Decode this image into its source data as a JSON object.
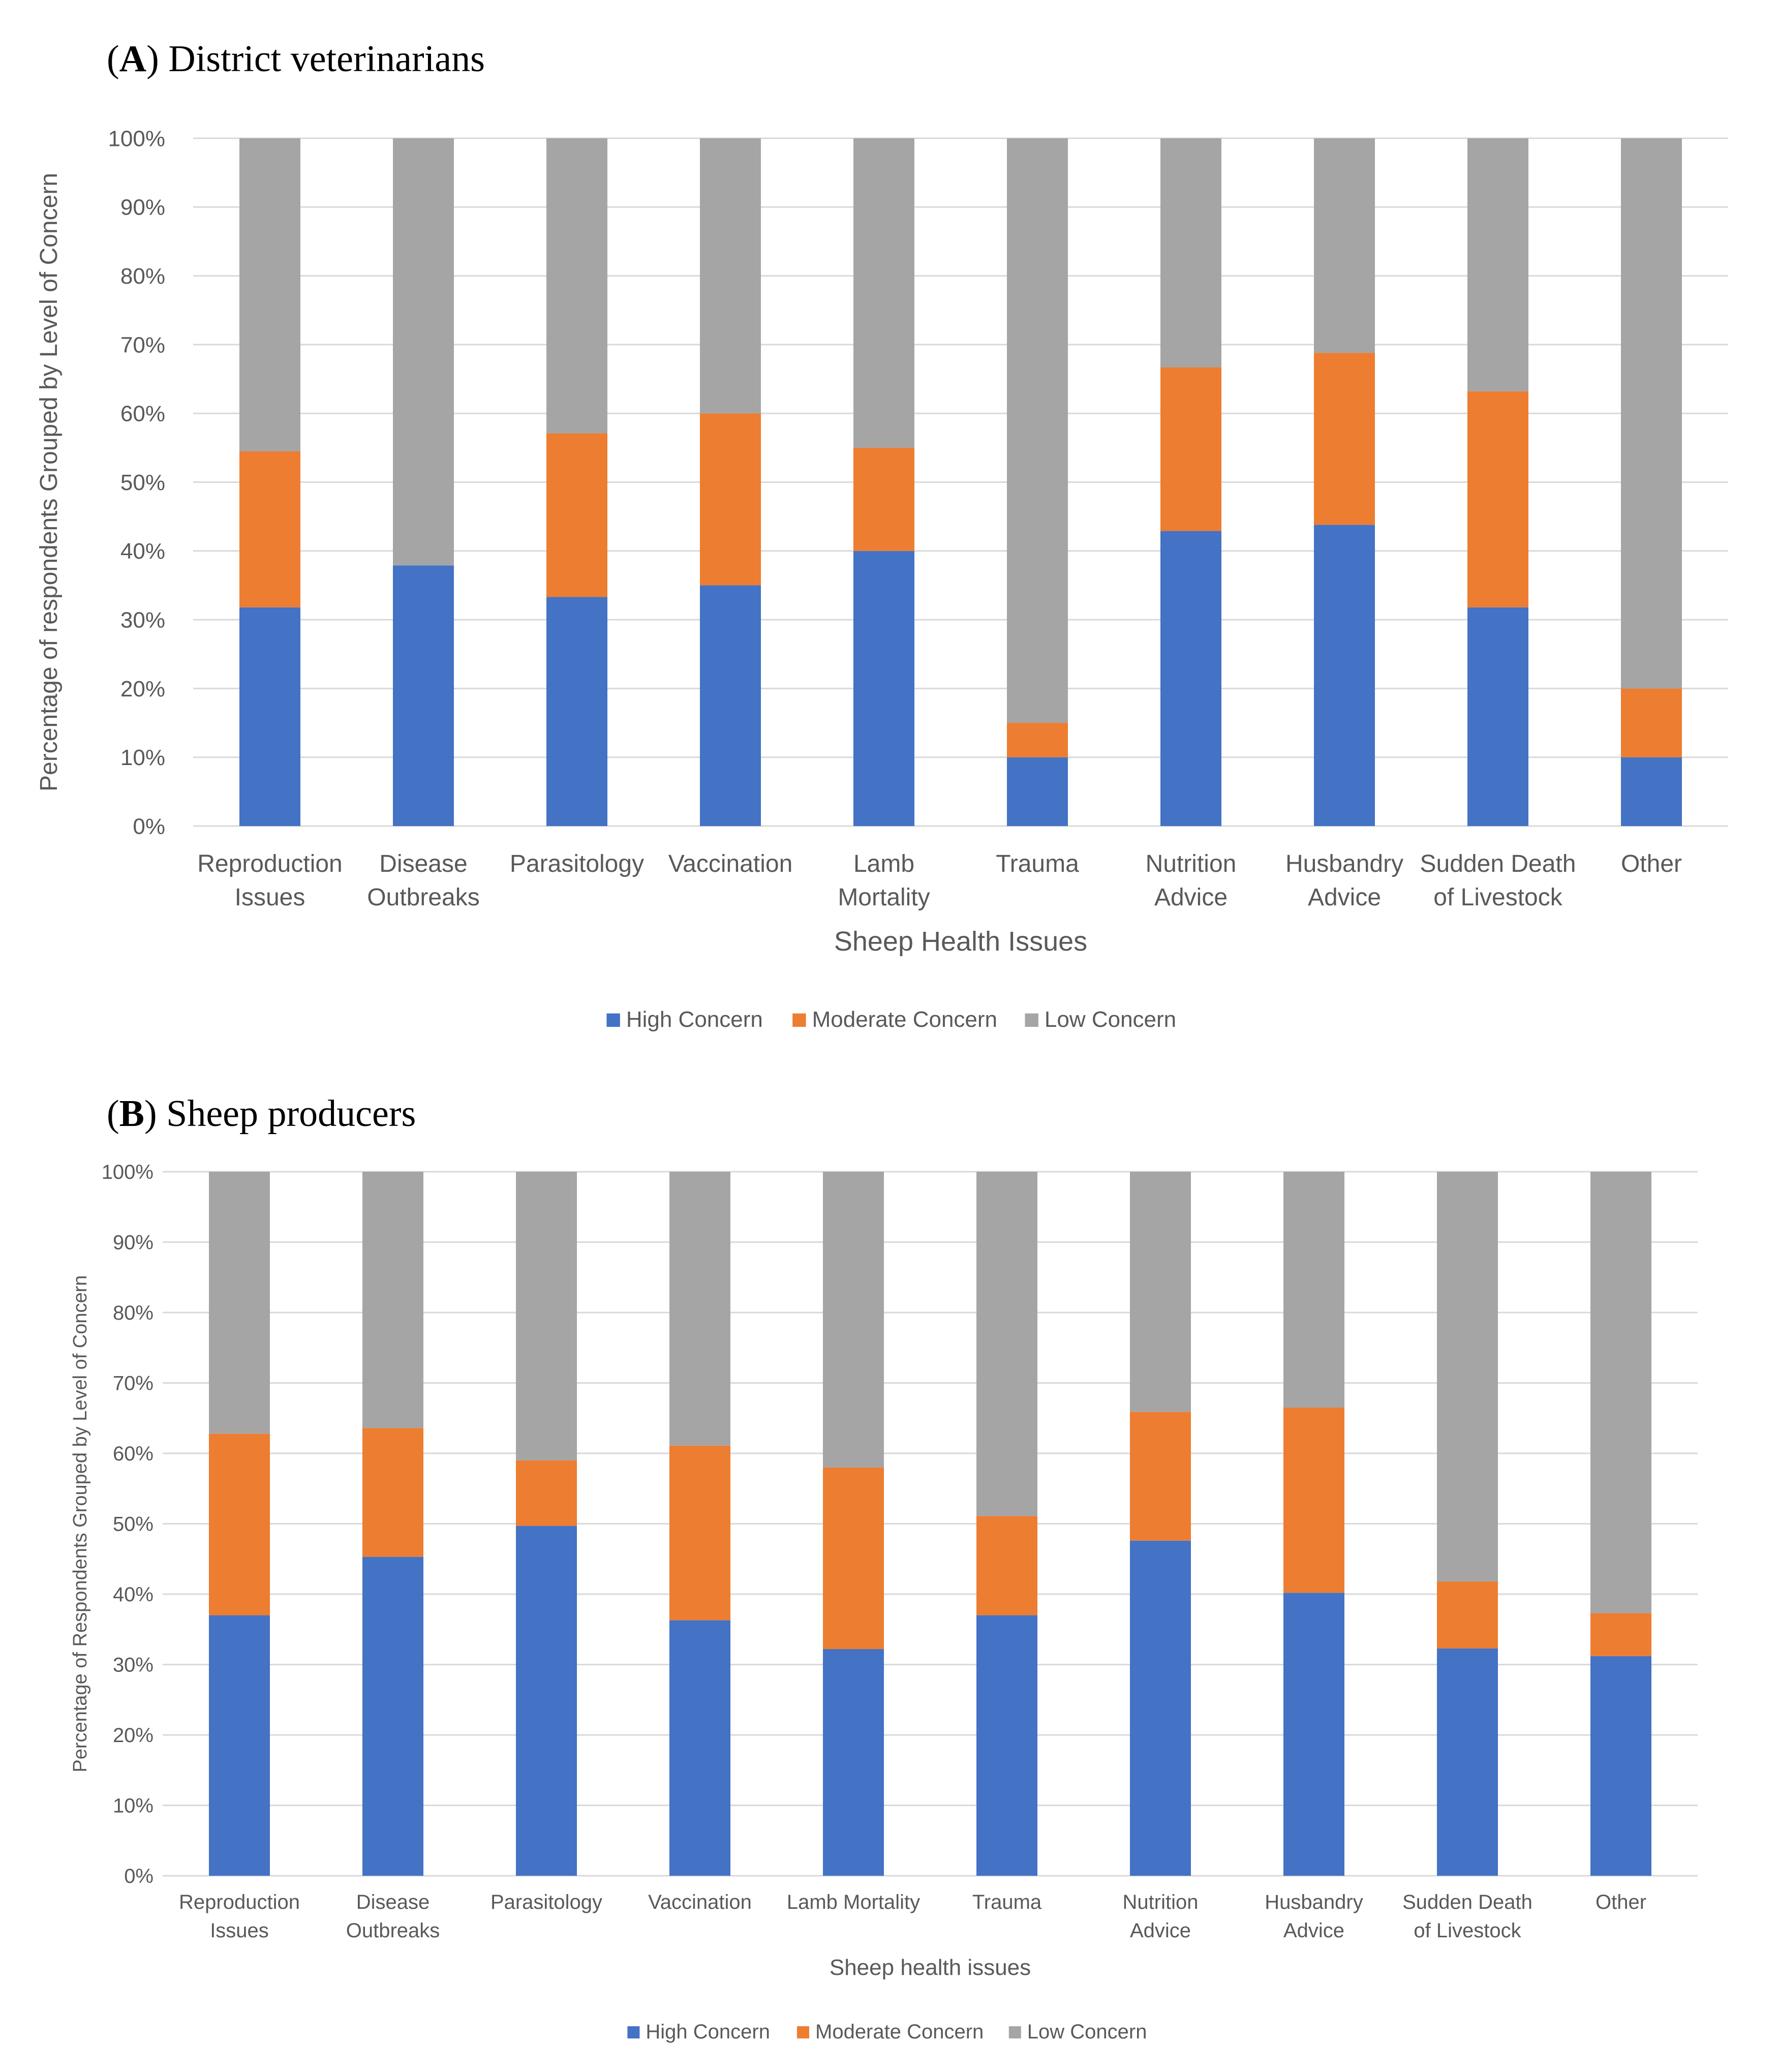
{
  "legend_labels": [
    "High Concern",
    "Moderate Concern",
    "Low Concern"
  ],
  "colors": {
    "high": "#4472C4",
    "moderate": "#ED7D31",
    "low": "#A5A5A5",
    "grid": "#D9D9D9",
    "tick_text": "#595959"
  },
  "chart_data": [
    {
      "type": "bar",
      "stacked": true,
      "panel_letter": "A",
      "panel_title": "District veterinarians",
      "xlabel": "Sheep Health Issues",
      "ylabel": "Percentage of respondents Grouped by Level of Concern",
      "ylim": [
        0,
        100
      ],
      "yticks": [
        "0%",
        "10%",
        "20%",
        "30%",
        "40%",
        "50%",
        "60%",
        "70%",
        "80%",
        "90%",
        "100%"
      ],
      "grid": true,
      "legend_position": "bottom",
      "categories": [
        [
          "Reproduction",
          "Issues"
        ],
        [
          "Disease",
          "Outbreaks"
        ],
        [
          "Parasitology"
        ],
        [
          "Vaccination"
        ],
        [
          "Lamb",
          "Mortality"
        ],
        [
          "Trauma"
        ],
        [
          "Nutrition",
          "Advice"
        ],
        [
          "Husbandry",
          "Advice"
        ],
        [
          "Sudden Death",
          "of Livestock"
        ],
        [
          "Other"
        ]
      ],
      "series": [
        {
          "name": "High Concern",
          "values": [
            31.8,
            37.9,
            33.3,
            35.0,
            40.0,
            10.0,
            42.9,
            43.8,
            31.8,
            10.0
          ]
        },
        {
          "name": "Moderate Concern",
          "values": [
            22.7,
            0.0,
            23.8,
            25.0,
            15.0,
            5.0,
            23.8,
            25.0,
            31.4,
            10.0
          ]
        },
        {
          "name": "Low Concern",
          "values": [
            45.5,
            62.1,
            42.9,
            40.0,
            45.0,
            85.0,
            33.3,
            31.2,
            36.8,
            80.0
          ]
        }
      ]
    },
    {
      "type": "bar",
      "stacked": true,
      "panel_letter": "B",
      "panel_title": "Sheep producers",
      "xlabel": "Sheep health issues",
      "ylabel": "Percentage of Respondents Grouped by Level of Concern",
      "ylim": [
        0,
        100
      ],
      "yticks": [
        "0%",
        "10%",
        "20%",
        "30%",
        "40%",
        "50%",
        "60%",
        "70%",
        "80%",
        "90%",
        "100%"
      ],
      "grid": true,
      "legend_position": "bottom",
      "categories": [
        [
          "Reproduction",
          "Issues"
        ],
        [
          "Disease",
          "Outbreaks"
        ],
        [
          "Parasitology"
        ],
        [
          "Vaccination"
        ],
        [
          "Lamb Mortality"
        ],
        [
          "Trauma"
        ],
        [
          "Nutrition",
          "Advice"
        ],
        [
          "Husbandry",
          "Advice"
        ],
        [
          "Sudden Death",
          "of Livestock"
        ],
        [
          "Other"
        ]
      ],
      "series": [
        {
          "name": "High Concern",
          "values": [
            37.0,
            45.3,
            49.7,
            36.3,
            32.2,
            37.0,
            47.6,
            40.2,
            32.3,
            31.2
          ]
        },
        {
          "name": "Moderate Concern",
          "values": [
            25.8,
            18.3,
            9.3,
            24.8,
            25.8,
            14.1,
            18.3,
            26.3,
            9.5,
            6.1
          ]
        },
        {
          "name": "Low Concern",
          "values": [
            37.2,
            36.4,
            41.0,
            38.9,
            42.0,
            48.9,
            34.1,
            33.5,
            58.2,
            62.7
          ]
        }
      ]
    }
  ]
}
